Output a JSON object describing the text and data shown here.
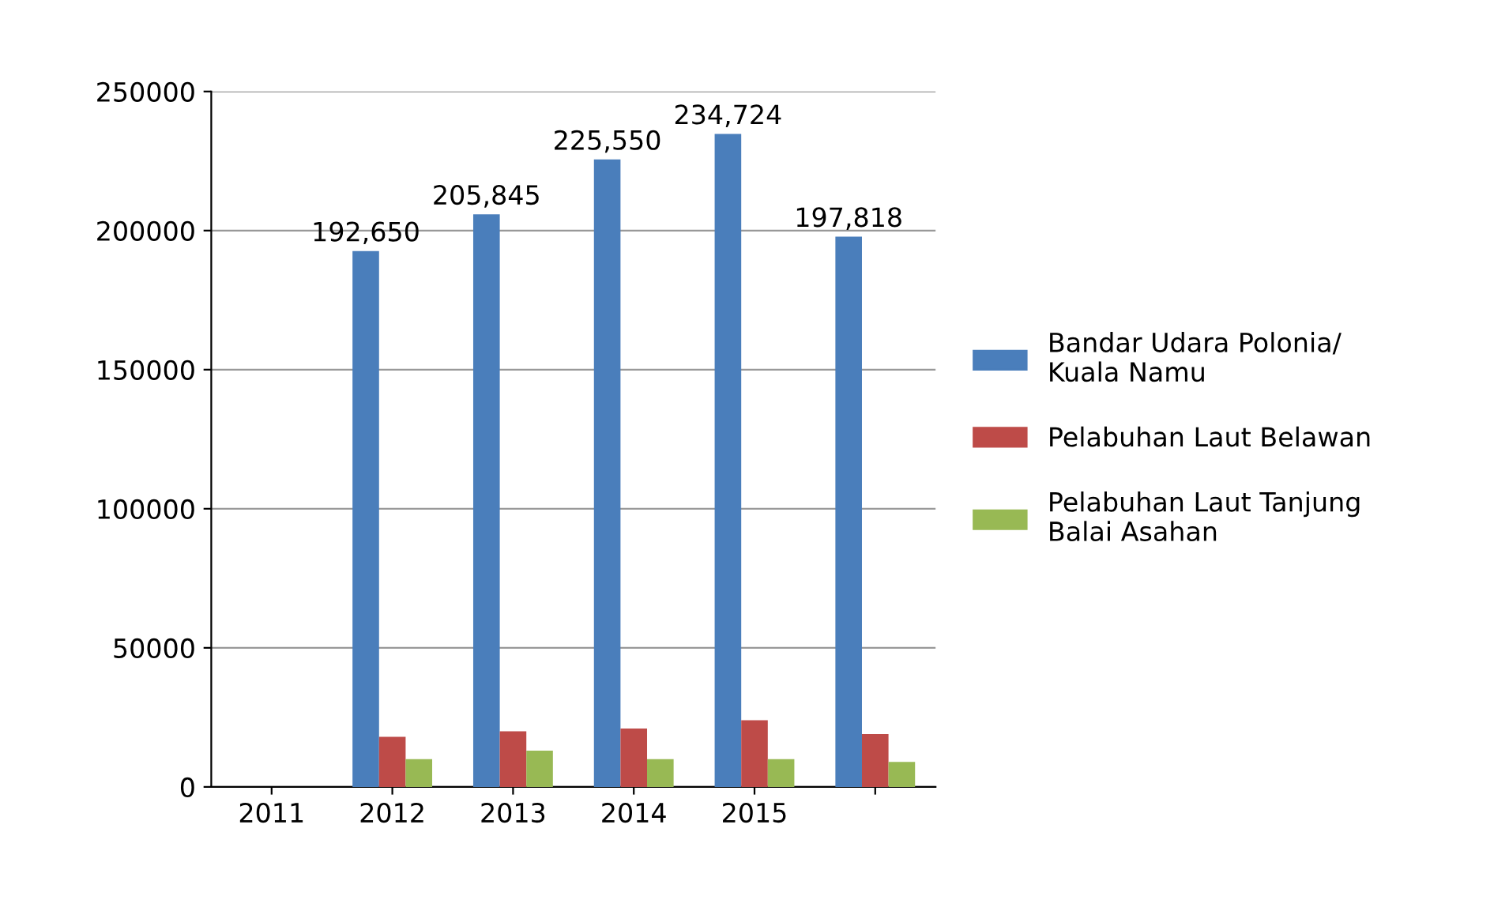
{
  "chart_data": {
    "type": "bar",
    "categories": [
      "2011",
      "2012",
      "2013",
      "2014",
      "2015",
      null
    ],
    "series": [
      {
        "name": "Bandar Udara Polonia/\nKuala Namu",
        "color": "#4a7ebb",
        "values": [
          null,
          192650,
          205845,
          225550,
          234724,
          197818
        ],
        "value_labels": [
          null,
          "192,650",
          "205,845",
          "225,550",
          "234,724",
          "197,818"
        ]
      },
      {
        "name": "Pelabuhan Laut Belawan",
        "color": "#be4b48",
        "values": [
          null,
          18000,
          20000,
          21000,
          24000,
          19000
        ]
      },
      {
        "name": "Pelabuhan Laut Tanjung\nBalai Asahan",
        "color": "#98b954",
        "values": [
          null,
          10000,
          13000,
          10000,
          10000,
          9000
        ]
      }
    ],
    "ylim": [
      0,
      250000
    ],
    "yticks": [
      0,
      50000,
      100000,
      150000,
      200000,
      250000
    ],
    "grid": "y",
    "legend": "right"
  }
}
